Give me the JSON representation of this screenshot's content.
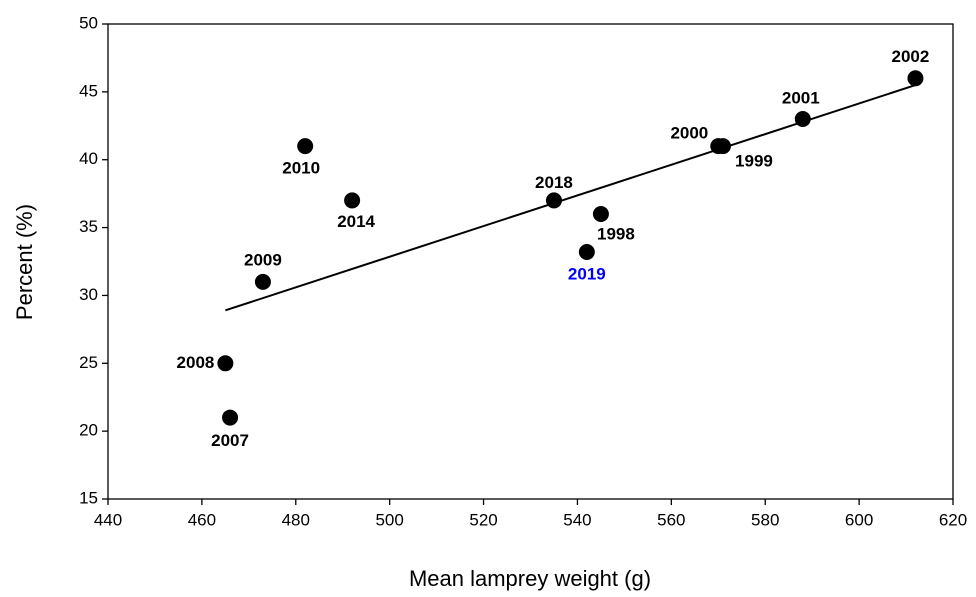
{
  "chart_data": {
    "type": "scatter",
    "x_label": "Mean lamprey weight (g)",
    "y_label": "Percent (%)",
    "x": [
      612,
      588,
      570,
      571,
      535,
      545,
      542,
      482,
      492,
      473,
      465,
      466
    ],
    "values": [
      46,
      43,
      41,
      41,
      37,
      36,
      33.2,
      41,
      37,
      31,
      25,
      21
    ],
    "point_labels": [
      "2002",
      "2001",
      "2000",
      "1999",
      "2018",
      "1998",
      "2019",
      "2010",
      "2014",
      "2009",
      "2008",
      "2007"
    ],
    "label_colors": [
      "#000000",
      "#000000",
      "#000000",
      "#000000",
      "#000000",
      "#000000",
      "#0000ff",
      "#000000",
      "#000000",
      "#000000",
      "#000000",
      "#000000"
    ],
    "color": "#000000",
    "trendline": {
      "x": [
        465,
        612
      ],
      "y": [
        28.9,
        45.5
      ]
    },
    "xlim": [
      440,
      620
    ],
    "xticks": [
      440,
      460,
      480,
      500,
      520,
      540,
      560,
      580,
      600,
      620
    ],
    "ylim": [
      15,
      50
    ],
    "yticks": [
      15,
      20,
      25,
      30,
      35,
      40,
      45,
      50
    ],
    "grid": false
  }
}
